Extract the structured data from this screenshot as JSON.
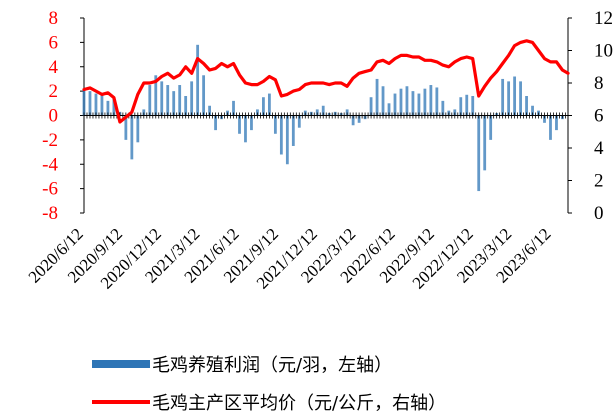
{
  "chart_data": {
    "type": "bar+line",
    "x_tick_labels": [
      "2020/6/12",
      "2020/9/12",
      "2020/12/12",
      "2021/3/12",
      "2021/6/12",
      "2021/9/12",
      "2021/12/12",
      "2022/3/12",
      "2022/6/12",
      "2022/9/12",
      "2022/12/12",
      "2023/3/12",
      "2023/6/12"
    ],
    "x_range": [
      "2020/6/12",
      "2023/7/20"
    ],
    "left_axis": {
      "ylim": [
        -8,
        8
      ],
      "ticks": [
        8,
        6,
        4,
        2,
        0,
        -2,
        -4,
        -6,
        -8
      ],
      "color": "#ff0000"
    },
    "right_axis": {
      "ylim": [
        0,
        12
      ],
      "ticks": [
        12,
        10,
        8,
        6,
        4,
        2,
        0
      ],
      "color": "#000000"
    },
    "series": [
      {
        "name": "毛鸡养殖利润（元/羽，左轴）",
        "type": "bar",
        "axis": "left",
        "color": "#2e75b6",
        "x": [
          "2020/6/12",
          "2020/6/26",
          "2020/7/10",
          "2020/7/24",
          "2020/8/7",
          "2020/8/21",
          "2020/9/4",
          "2020/9/18",
          "2020/10/2",
          "2020/10/16",
          "2020/10/30",
          "2020/11/13",
          "2020/11/27",
          "2020/12/11",
          "2020/12/25",
          "2021/1/8",
          "2021/1/22",
          "2021/2/5",
          "2021/2/19",
          "2021/3/5",
          "2021/3/19",
          "2021/4/2",
          "2021/4/16",
          "2021/4/30",
          "2021/5/14",
          "2021/5/28",
          "2021/6/11",
          "2021/6/25",
          "2021/7/9",
          "2021/7/23",
          "2021/8/6",
          "2021/8/20",
          "2021/9/3",
          "2021/9/17",
          "2021/10/1",
          "2021/10/15",
          "2021/10/29",
          "2021/11/12",
          "2021/11/26",
          "2021/12/10",
          "2021/12/24",
          "2022/1/7",
          "2022/1/21",
          "2022/2/4",
          "2022/2/18",
          "2022/3/4",
          "2022/3/18",
          "2022/4/1",
          "2022/4/15",
          "2022/4/29",
          "2022/5/13",
          "2022/5/27",
          "2022/6/10",
          "2022/6/24",
          "2022/7/8",
          "2022/7/22",
          "2022/8/5",
          "2022/8/19",
          "2022/9/2",
          "2022/9/16",
          "2022/9/30",
          "2022/10/14",
          "2022/10/28",
          "2022/11/11",
          "2022/11/25",
          "2022/12/9",
          "2022/12/23",
          "2023/1/6",
          "2023/1/20",
          "2023/2/3",
          "2023/2/17",
          "2023/3/3",
          "2023/3/17",
          "2023/3/31",
          "2023/4/14",
          "2023/4/28",
          "2023/5/12",
          "2023/5/26",
          "2023/6/9",
          "2023/6/23",
          "2023/7/7"
        ],
        "values": [
          2.2,
          2.0,
          1.8,
          1.7,
          1.2,
          1.5,
          0.3,
          -2.0,
          -3.6,
          -2.2,
          0.5,
          2.5,
          3.3,
          2.8,
          2.5,
          2.0,
          2.5,
          1.6,
          2.8,
          5.8,
          3.3,
          0.8,
          -1.2,
          -0.3,
          0.4,
          1.2,
          -1.5,
          -2.2,
          -1.2,
          0.5,
          1.5,
          1.8,
          -1.5,
          -3.2,
          -4.0,
          -2.5,
          -1.0,
          0.4,
          0.3,
          0.5,
          0.8,
          0.2,
          0.3,
          0.2,
          0.5,
          -0.8,
          -0.6,
          -0.3,
          1.5,
          3.0,
          2.4,
          1.0,
          1.8,
          2.2,
          2.4,
          2.0,
          1.8,
          2.2,
          2.5,
          2.3,
          1.2,
          0.4,
          0.5,
          1.5,
          1.7,
          1.6,
          -6.2,
          -4.5,
          -2.0,
          0.2,
          3.0,
          2.8,
          3.2,
          2.8,
          1.6,
          0.8,
          0.4,
          -0.6,
          -2.0,
          -1.2,
          -0.3
        ]
      },
      {
        "name": "毛鸡主产区平均价（元/公斤，右轴）",
        "type": "line",
        "axis": "right",
        "color": "#ff0000",
        "x": [
          "2020/6/12",
          "2020/6/26",
          "2020/7/10",
          "2020/7/24",
          "2020/8/7",
          "2020/8/21",
          "2020/9/4",
          "2020/9/18",
          "2020/10/2",
          "2020/10/16",
          "2020/10/30",
          "2020/11/13",
          "2020/11/27",
          "2020/12/11",
          "2020/12/25",
          "2021/1/8",
          "2021/1/22",
          "2021/2/5",
          "2021/2/19",
          "2021/3/5",
          "2021/3/19",
          "2021/4/2",
          "2021/4/16",
          "2021/4/30",
          "2021/5/14",
          "2021/5/28",
          "2021/6/11",
          "2021/6/25",
          "2021/7/9",
          "2021/7/23",
          "2021/8/6",
          "2021/8/20",
          "2021/9/3",
          "2021/9/17",
          "2021/10/1",
          "2021/10/15",
          "2021/10/29",
          "2021/11/12",
          "2021/11/26",
          "2021/12/10",
          "2021/12/24",
          "2022/1/7",
          "2022/1/21",
          "2022/2/4",
          "2022/2/18",
          "2022/3/4",
          "2022/3/18",
          "2022/4/1",
          "2022/4/15",
          "2022/4/29",
          "2022/5/13",
          "2022/5/27",
          "2022/6/10",
          "2022/6/24",
          "2022/7/8",
          "2022/7/22",
          "2022/8/5",
          "2022/8/19",
          "2022/9/2",
          "2022/9/16",
          "2022/9/30",
          "2022/10/14",
          "2022/10/28",
          "2022/11/11",
          "2022/11/25",
          "2022/12/9",
          "2022/12/23",
          "2023/1/6",
          "2023/1/20",
          "2023/2/3",
          "2023/2/17",
          "2023/3/3",
          "2023/3/17",
          "2023/3/31",
          "2023/4/14",
          "2023/4/28",
          "2023/5/12",
          "2023/5/26",
          "2023/6/9",
          "2023/6/23",
          "2023/7/7",
          "2023/7/20"
        ],
        "values": [
          7.6,
          7.7,
          7.5,
          7.3,
          7.4,
          7.1,
          5.6,
          5.9,
          6.2,
          7.3,
          8.0,
          8.0,
          8.1,
          8.4,
          8.6,
          8.3,
          8.5,
          9.0,
          8.6,
          9.5,
          9.2,
          8.8,
          8.9,
          9.2,
          9.0,
          9.2,
          8.5,
          8.0,
          7.9,
          7.9,
          8.1,
          8.4,
          8.2,
          7.2,
          7.3,
          7.5,
          7.6,
          7.9,
          8.0,
          8.0,
          8.0,
          7.9,
          8.0,
          8.0,
          7.8,
          8.3,
          8.6,
          8.7,
          8.8,
          9.3,
          9.4,
          9.2,
          9.5,
          9.7,
          9.7,
          9.6,
          9.6,
          9.4,
          9.4,
          9.3,
          9.1,
          9.0,
          9.3,
          9.5,
          9.6,
          9.5,
          7.2,
          7.8,
          8.3,
          8.7,
          9.2,
          9.7,
          10.3,
          10.5,
          10.6,
          10.5,
          10.0,
          9.5,
          9.3,
          9.3,
          8.8,
          8.6
        ]
      }
    ],
    "legend": [
      "毛鸡养殖利润（元/羽，左轴）",
      "毛鸡主产区平均价（元/公斤，右轴）"
    ],
    "legend_position": "bottom",
    "grid": false
  }
}
